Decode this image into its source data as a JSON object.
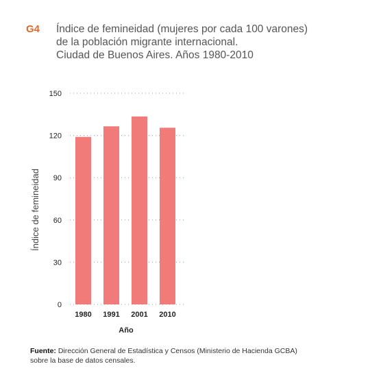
{
  "figure_code": "G4",
  "title_lines": [
    "Índice de femineidad (mujeres por cada 100 varones)",
    "de la población migrante internacional.",
    "Ciudad de Buenos  Aires. Años 1980-2010"
  ],
  "source": {
    "label": "Fuente:",
    "line1": "Dirección General de Estadística y Censos (Ministerio de Hacienda GCBA)",
    "line2": "sobre la base de datos censales."
  },
  "chart_data": {
    "type": "bar",
    "categories": [
      "1980",
      "1991",
      "2001",
      "2010"
    ],
    "values": [
      119,
      126.5,
      133.5,
      125.5
    ],
    "xlabel": "Año",
    "ylabel": "Índice de femineidad",
    "ylim": [
      0,
      150
    ],
    "yticks": [
      "0",
      "30",
      "60",
      "90",
      "120",
      "150"
    ],
    "grid": "horizontal-dotted",
    "bar_color": "#f07b78",
    "grid_color": "#999999"
  }
}
